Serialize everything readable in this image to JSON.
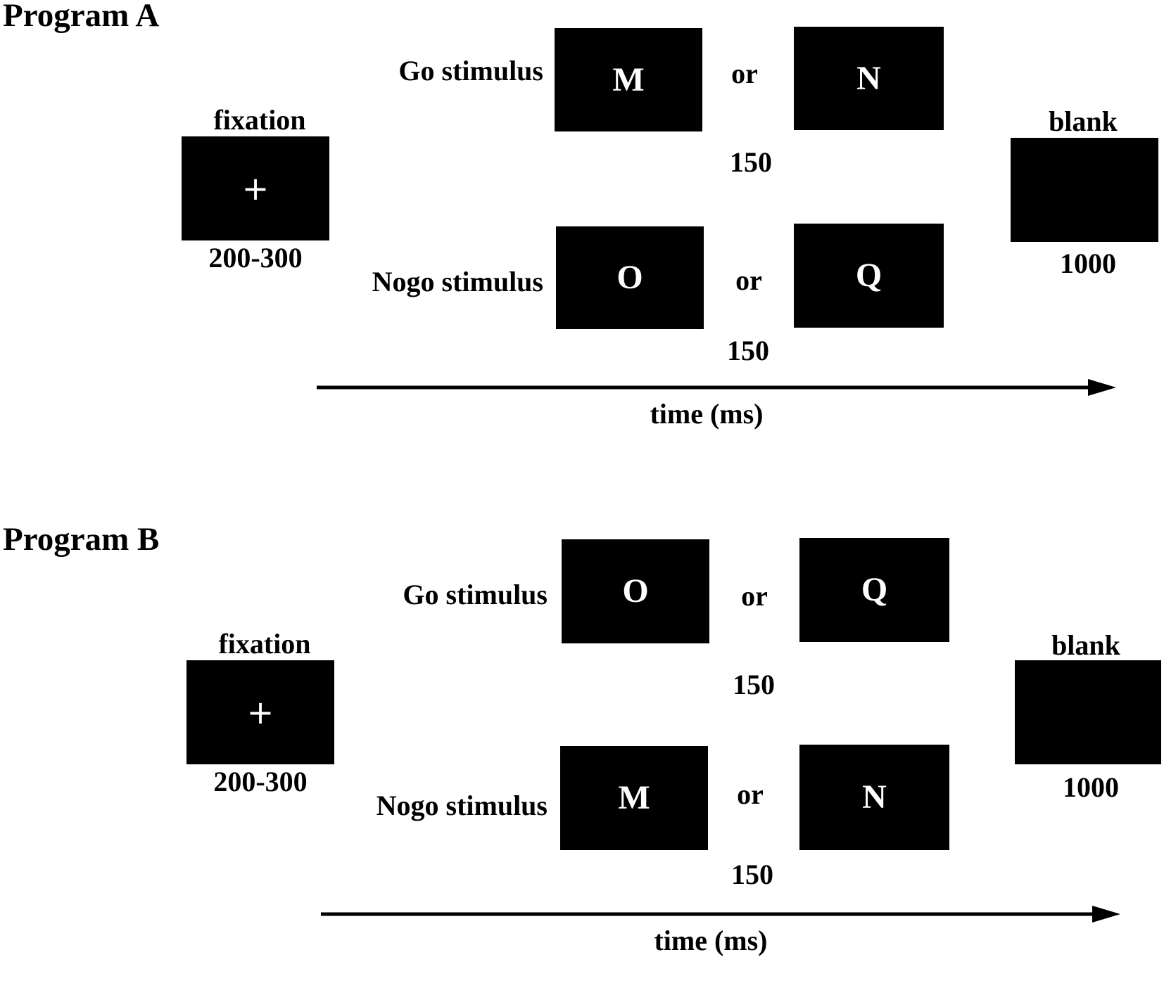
{
  "colors": {
    "background": "#ffffff",
    "box_fill": "#000000",
    "text": "#000000",
    "box_text": "#ffffff",
    "arrow": "#000000"
  },
  "programs": [
    {
      "title": "Program A",
      "fixation": {
        "label": "fixation",
        "symbol": "+",
        "duration": "200-300"
      },
      "go": {
        "label": "Go stimulus",
        "left_letter": "M",
        "or": "or",
        "right_letter": "N",
        "duration": "150"
      },
      "nogo": {
        "label": "Nogo stimulus",
        "left_letter": "O",
        "or": "or",
        "right_letter": "Q",
        "duration": "150"
      },
      "blank": {
        "label": "blank",
        "duration": "1000"
      },
      "axis_label": "time (ms)"
    },
    {
      "title": "Program B",
      "fixation": {
        "label": "fixation",
        "symbol": "+",
        "duration": "200-300"
      },
      "go": {
        "label": "Go stimulus",
        "left_letter": "O",
        "or": "or",
        "right_letter": "Q",
        "duration": "150"
      },
      "nogo": {
        "label": "Nogo stimulus",
        "left_letter": "M",
        "or": "or",
        "right_letter": "N",
        "duration": "150"
      },
      "blank": {
        "label": "blank",
        "duration": "1000"
      },
      "axis_label": "time (ms)"
    }
  ]
}
